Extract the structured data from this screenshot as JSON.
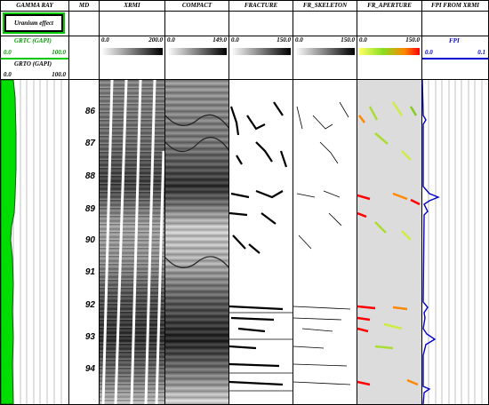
{
  "tracks": {
    "gamma_ray": {
      "title": "GAMMA RAY",
      "annotation": "Uranium effect",
      "grtc_label": "GRTC (GAPI)",
      "grtc_min": "0.0",
      "grtc_max": "100.0",
      "grto_label": "GRTO (GAPI)",
      "grto_min": "0.0",
      "grto_max": "100.0",
      "fill_color": "#00dd00"
    },
    "md": {
      "title": "MD",
      "depths": [
        "86",
        "87",
        "88",
        "89",
        "90",
        "91",
        "92",
        "93",
        "94"
      ]
    },
    "xrmi": {
      "title": "XRMI",
      "min": "0.0",
      "max": "200.0"
    },
    "compact": {
      "title": "COMPACT",
      "min": "0.0",
      "max": "149.0"
    },
    "fracture": {
      "title": "FRACTURE",
      "min": "0.0",
      "max": "150.0"
    },
    "fr_skeleton": {
      "title": "FR_SKELETON",
      "min": "0.0",
      "max": "150.0"
    },
    "fr_aperture": {
      "title": "FR_APERTURE",
      "min": "0.0",
      "max": "150.0",
      "colors": [
        "#ffff66",
        "#88dd22",
        "#ff8800",
        "#ff0000"
      ]
    },
    "fpi": {
      "title": "FPI FROM XRMI",
      "curve_label": "FPI",
      "min": "0.0",
      "max": "0.1",
      "curve_color": "#0000cc"
    }
  }
}
